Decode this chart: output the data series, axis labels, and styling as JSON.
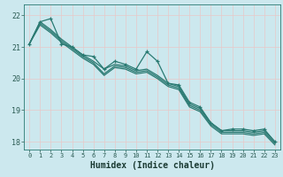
{
  "xlabel": "Humidex (Indice chaleur)",
  "background_color": "#cce8ee",
  "grid_color": "#e8c8c8",
  "line_color": "#2a7a72",
  "xlim": [
    -0.5,
    23.5
  ],
  "ylim": [
    17.75,
    22.35
  ],
  "yticks": [
    18,
    19,
    20,
    21,
    22
  ],
  "xticks": [
    0,
    1,
    2,
    3,
    4,
    5,
    6,
    7,
    8,
    9,
    10,
    11,
    12,
    13,
    14,
    15,
    16,
    17,
    18,
    19,
    20,
    21,
    22,
    23
  ],
  "series_smooth": [
    [
      21.1,
      21.8,
      21.55,
      21.25,
      21.0,
      20.75,
      20.55,
      20.3,
      20.45,
      20.4,
      20.25,
      20.3,
      20.1,
      19.85,
      19.75,
      19.2,
      19.05,
      18.6,
      18.35,
      18.35,
      18.35,
      18.3,
      18.35,
      18.0
    ],
    [
      21.1,
      21.75,
      21.5,
      21.2,
      20.95,
      20.7,
      20.5,
      20.15,
      20.4,
      20.35,
      20.2,
      20.25,
      20.05,
      19.8,
      19.7,
      19.15,
      19.0,
      18.55,
      18.3,
      18.3,
      18.3,
      18.25,
      18.3,
      17.95
    ],
    [
      21.1,
      21.7,
      21.45,
      21.15,
      20.9,
      20.65,
      20.45,
      20.1,
      20.35,
      20.3,
      20.15,
      20.2,
      20.0,
      19.75,
      19.65,
      19.1,
      18.95,
      18.5,
      18.25,
      18.25,
      18.25,
      18.2,
      18.25,
      17.9
    ]
  ],
  "main_series": [
    21.1,
    21.8,
    21.9,
    21.1,
    21.0,
    20.75,
    20.7,
    20.3,
    20.55,
    20.45,
    20.3,
    20.85,
    20.55,
    19.85,
    19.8,
    19.25,
    19.1,
    18.6,
    18.35,
    18.4,
    18.4,
    18.35,
    18.4,
    18.0
  ]
}
